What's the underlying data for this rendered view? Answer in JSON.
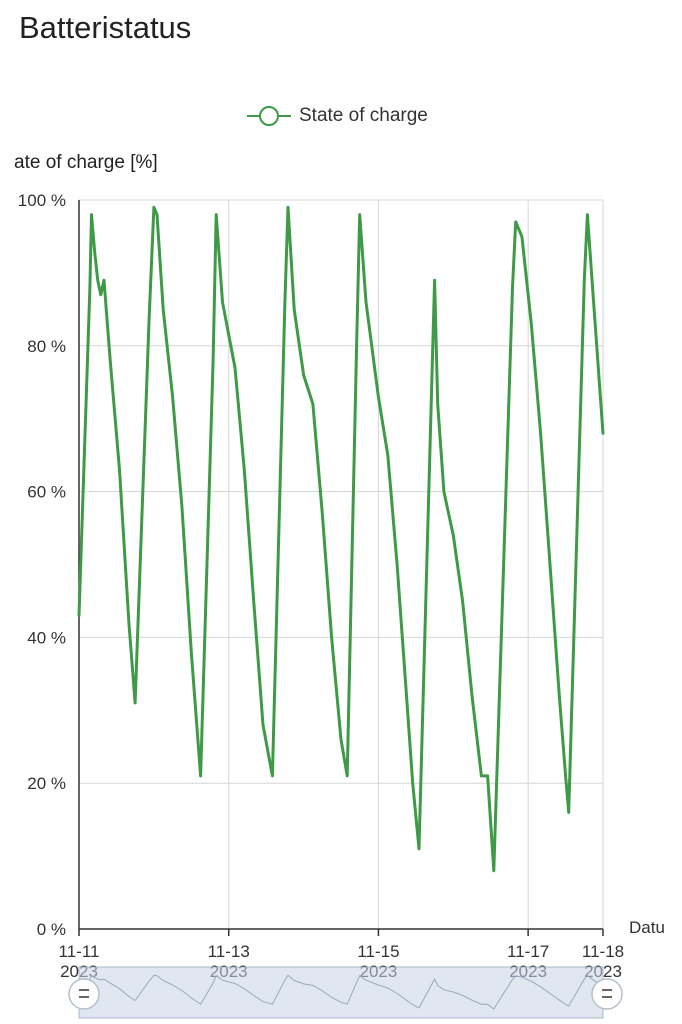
{
  "page": {
    "title": "Batteristatus"
  },
  "colors": {
    "series": "#3f9a48",
    "grid": "#d6d6d6",
    "axis": "#333333",
    "slider_bg": "#c9d3e3",
    "slider_line": "#9aa8bd"
  },
  "chart_data": {
    "type": "line",
    "title": "",
    "xlabel": "Datu",
    "ylabel": "ate of charge [%]",
    "ylim": [
      0,
      100
    ],
    "y_ticks": [
      "0 %",
      "20 %",
      "40 %",
      "60 %",
      "80 %",
      "100 %"
    ],
    "x_ticks": [
      {
        "date": "2023-11-11",
        "label": "11-11",
        "sublabel": "2023"
      },
      {
        "date": "2023-11-13",
        "label": "11-13",
        "sublabel": "2023"
      },
      {
        "date": "2023-11-15",
        "label": "11-15",
        "sublabel": "2023"
      },
      {
        "date": "2023-11-17",
        "label": "11-17",
        "sublabel": "2023"
      },
      {
        "date": "2023-11-18",
        "label": "11-18",
        "sublabel": "2023"
      }
    ],
    "grid": true,
    "legend": "top-center",
    "series": [
      {
        "name": "State of charge",
        "points": [
          [
            "2023-11-11 00:00",
            43
          ],
          [
            "2023-11-11 03:30",
            88
          ],
          [
            "2023-11-11 04:00",
            98
          ],
          [
            "2023-11-11 05:00",
            93
          ],
          [
            "2023-11-11 06:00",
            89
          ],
          [
            "2023-11-11 07:00",
            87
          ],
          [
            "2023-11-11 08:00",
            89
          ],
          [
            "2023-11-11 10:00",
            78
          ],
          [
            "2023-11-11 13:00",
            63
          ],
          [
            "2023-11-11 16:00",
            42
          ],
          [
            "2023-11-11 18:00",
            31
          ],
          [
            "2023-11-11 22:30",
            84
          ],
          [
            "2023-11-12 00:00",
            99
          ],
          [
            "2023-11-12 01:00",
            98
          ],
          [
            "2023-11-12 03:00",
            85
          ],
          [
            "2023-11-12 06:00",
            73
          ],
          [
            "2023-11-12 09:00",
            58
          ],
          [
            "2023-11-12 12:00",
            38
          ],
          [
            "2023-11-12 15:00",
            21
          ],
          [
            "2023-11-12 19:00",
            78
          ],
          [
            "2023-11-12 20:00",
            98
          ],
          [
            "2023-11-12 22:00",
            86
          ],
          [
            "2023-11-13 02:00",
            77
          ],
          [
            "2023-11-13 05:00",
            63
          ],
          [
            "2023-11-13 08:00",
            45
          ],
          [
            "2023-11-13 11:00",
            28
          ],
          [
            "2023-11-13 14:00",
            21
          ],
          [
            "2023-11-13 18:00",
            86
          ],
          [
            "2023-11-13 19:00",
            99
          ],
          [
            "2023-11-13 21:00",
            85
          ],
          [
            "2023-11-14 00:00",
            76
          ],
          [
            "2023-11-14 03:00",
            72
          ],
          [
            "2023-11-14 06:00",
            57
          ],
          [
            "2023-11-14 09:00",
            40
          ],
          [
            "2023-11-14 12:00",
            26
          ],
          [
            "2023-11-14 14:00",
            21
          ],
          [
            "2023-11-14 17:00",
            80
          ],
          [
            "2023-11-14 18:00",
            98
          ],
          [
            "2023-11-14 20:00",
            86
          ],
          [
            "2023-11-15 00:00",
            73
          ],
          [
            "2023-11-15 03:00",
            65
          ],
          [
            "2023-11-15 06:00",
            50
          ],
          [
            "2023-11-15 09:00",
            32
          ],
          [
            "2023-11-15 11:00",
            20
          ],
          [
            "2023-11-15 13:00",
            11
          ],
          [
            "2023-11-15 18:00",
            89
          ],
          [
            "2023-11-15 19:00",
            72
          ],
          [
            "2023-11-15 21:00",
            60
          ],
          [
            "2023-11-16 00:00",
            54
          ],
          [
            "2023-11-16 03:00",
            45
          ],
          [
            "2023-11-16 06:00",
            32
          ],
          [
            "2023-11-16 09:00",
            21
          ],
          [
            "2023-11-16 11:00",
            21
          ],
          [
            "2023-11-16 13:00",
            8
          ],
          [
            "2023-11-16 19:00",
            88
          ],
          [
            "2023-11-16 20:00",
            97
          ],
          [
            "2023-11-16 22:00",
            95
          ],
          [
            "2023-11-17 01:00",
            83
          ],
          [
            "2023-11-17 04:00",
            68
          ],
          [
            "2023-11-17 07:00",
            50
          ],
          [
            "2023-11-17 10:00",
            32
          ],
          [
            "2023-11-17 12:00",
            21
          ],
          [
            "2023-11-17 13:00",
            16
          ],
          [
            "2023-11-17 18:00",
            89
          ],
          [
            "2023-11-17 19:00",
            98
          ],
          [
            "2023-11-17 21:00",
            86
          ],
          [
            "2023-11-18 00:00",
            68
          ]
        ]
      }
    ]
  }
}
